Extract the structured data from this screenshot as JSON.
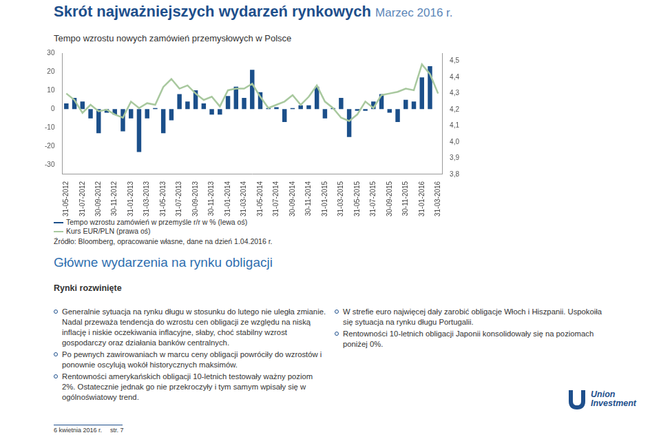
{
  "header": {
    "title": "Skrót najważniejszych wydarzeń rynkowych",
    "date": "Marzec 2016 r."
  },
  "chart_data": {
    "type": "bar",
    "title": "Tempo wzrostu nowych zamówień przemysłowych w Polsce",
    "categories": [
      "31-05-2012",
      null,
      "31-07-2012",
      null,
      "30-09-2012",
      null,
      "30-11-2012",
      null,
      "31-01-2013",
      null,
      "31-03-2013",
      null,
      "31-05-2013",
      null,
      "31-07-2013",
      null,
      "30-09-2013",
      null,
      "30-11-2013",
      null,
      "31-01-2014",
      null,
      "31-03-2014",
      null,
      "31-05-2014",
      null,
      "31-07-2014",
      null,
      "30-09-2014",
      null,
      "30-11-2014",
      null,
      "31-01-2015",
      null,
      "31-03-2015",
      null,
      "31-05-2015",
      null,
      "31-07-2015",
      null,
      "30-09-2015",
      null,
      "30-11-2015",
      null,
      "31-01-2016",
      null,
      "31-03-2016"
    ],
    "series": [
      {
        "name": "Tempo wzrostu zamówień w przemyśle r/r w % (lewa oś)",
        "type": "bar",
        "color": "#1b4f8a",
        "values": [
          3,
          6,
          4,
          -5,
          -13,
          -2,
          -3,
          -12,
          -5,
          -23,
          -5,
          0.5,
          -13,
          -6,
          8,
          4,
          10,
          3,
          -3,
          -3,
          7,
          12,
          6,
          21,
          9,
          0.5,
          1,
          -7,
          0.5,
          2,
          2,
          12,
          -5,
          0.5,
          6,
          -15,
          -1,
          -1,
          4,
          8,
          -2,
          -7,
          5,
          4,
          17,
          23,
          null
        ]
      },
      {
        "name": "Kurs EUR/PLN (prawa oś)",
        "type": "line",
        "axis": "y2",
        "color": "#a8c89e",
        "values": [
          4.3,
          4.26,
          4.18,
          4.23,
          4.19,
          4.2,
          4.17,
          4.15,
          4.25,
          4.21,
          4.24,
          4.23,
          4.34,
          4.39,
          4.33,
          4.35,
          4.3,
          4.26,
          4.28,
          4.22,
          4.32,
          4.33,
          4.33,
          4.36,
          4.28,
          4.21,
          4.23,
          4.25,
          4.29,
          4.23,
          4.28,
          4.35,
          4.25,
          4.21,
          4.15,
          4.13,
          4.17,
          4.25,
          4.21,
          4.29,
          4.3,
          4.31,
          4.33,
          4.32,
          4.48,
          4.42,
          4.3
        ]
      }
    ],
    "ylim": [
      -35,
      30
    ],
    "yticks": [
      -30,
      -20,
      -10,
      0,
      10,
      20,
      30
    ],
    "y2lim": [
      3.8,
      4.55
    ],
    "y2ticks": [
      {
        "value": 3.8,
        "label": "3,8"
      },
      {
        "value": 3.9,
        "label": "3,9"
      },
      {
        "value": 4.0,
        "label": "4,0"
      },
      {
        "value": 4.1,
        "label": "4,1"
      },
      {
        "value": 4.2,
        "label": "4,2"
      },
      {
        "value": 4.3,
        "label": "4,3"
      },
      {
        "value": 4.4,
        "label": "4,4"
      },
      {
        "value": 4.5,
        "label": "4,5"
      }
    ],
    "grid": false,
    "legend": "bottom"
  },
  "source": "Źródło: Bloomberg, opracowanie własne, dane na dzień 1.04.2016 r.",
  "section": {
    "title": "Główne wydarzenia na rynku obligacji",
    "subtitle": "Rynki rozwinięte",
    "left_bullets": [
      "Generalnie sytuacja na rynku długu w stosunku do lutego nie uległa zmianie. Nadal przeważa tendencja do wzrostu cen obligacji ze względu na niską inflację i niskie oczekiwania inflacyjne, słaby, choć stabilny wzrost gospodarczy oraz działania banków centralnych.",
      "Po pewnych zawirowaniach w marcu ceny obligacji powróciły do wzrostów i ponownie oscylują wokół historycznych maksimów.",
      "Rentowności amerykańskich obligacji 10-letnich testowały ważny poziom 2%. Ostatecznie jednak go nie przekroczyły i tym samym wpisały się w ogólnoświatowy trend."
    ],
    "right_bullets": [
      "W strefie euro najwięcej dały zarobić obligacje Włoch i Hiszpanii. Uspokoiła się sytuacja na rynku długu Portugalii.",
      "Rentowności 10-letnich obligacji Japonii konsolidowały się na poziomach poniżej 0%."
    ]
  },
  "footer": {
    "date": "6 kwietnia 2016 r.",
    "page": "str. 7"
  },
  "logo": [
    "Union",
    "Investment"
  ]
}
